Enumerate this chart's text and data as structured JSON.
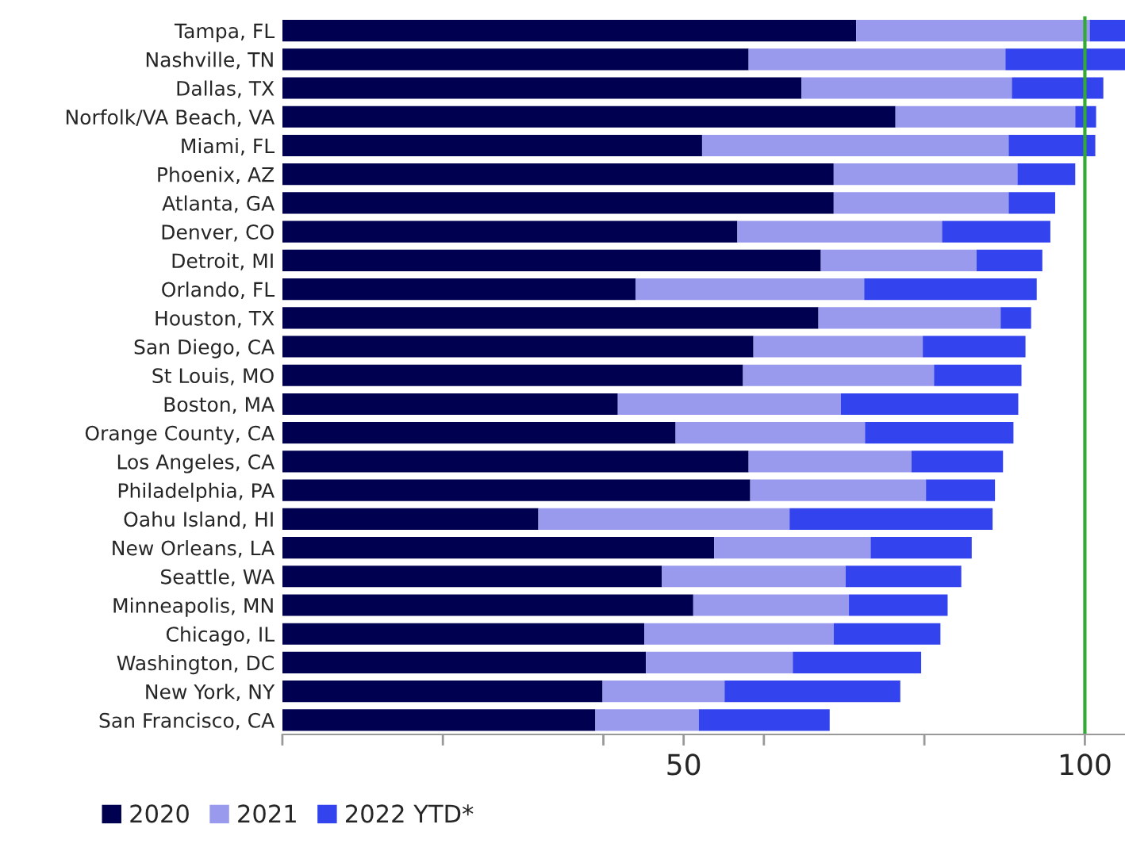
{
  "chart_data": {
    "type": "bar",
    "orientation": "horizontal",
    "stacked": true,
    "categories": [
      "Tampa, FL",
      "Nashville, TN",
      "Dallas, TX",
      "Norfolk/VA Beach, VA",
      "Miami, FL",
      "Phoenix, AZ",
      "Atlanta, GA",
      "Denver, CO",
      "Detroit, MI",
      "Orlando, FL",
      "Houston, TX",
      "San Diego, CA",
      "St Louis, MO",
      "Boston, MA",
      "Orange County, CA",
      "Los Angeles, CA",
      "Philadelphia, PA",
      "Oahu Island, HI",
      "New Orleans, LA",
      "Seattle, WA",
      "Minneapolis, MN",
      "Chicago, IL",
      "Washington, DC",
      "New York, NY",
      "San Francisco, CA"
    ],
    "series": [
      {
        "name": "2020",
        "color": "#000050",
        "values": [
          71.5,
          58.1,
          64.7,
          76.4,
          52.3,
          68.7,
          68.7,
          56.7,
          67.1,
          44.0,
          66.8,
          58.7,
          57.4,
          41.8,
          49.0,
          58.1,
          58.3,
          31.9,
          53.8,
          47.3,
          51.2,
          45.1,
          45.3,
          39.9,
          39.0
        ]
      },
      {
        "name": "2021",
        "color": "#9999ee",
        "values": [
          29.1,
          32.0,
          26.2,
          22.4,
          38.2,
          22.9,
          21.8,
          25.5,
          19.4,
          28.5,
          22.7,
          21.1,
          23.8,
          27.8,
          23.6,
          20.3,
          21.9,
          31.3,
          19.5,
          22.9,
          19.4,
          23.6,
          18.3,
          15.2,
          12.9
        ]
      },
      {
        "name": "2022 YTD*",
        "color": "#3344ee",
        "values": [
          4.4,
          14.9,
          11.4,
          2.6,
          10.8,
          7.2,
          5.8,
          13.5,
          8.2,
          21.5,
          3.8,
          12.8,
          10.9,
          22.1,
          18.5,
          11.4,
          8.6,
          25.3,
          12.6,
          14.4,
          12.3,
          13.3,
          16.0,
          21.9,
          16.3
        ]
      }
    ],
    "xlim": [
      0,
      105
    ],
    "xticks": [
      {
        "value": 0,
        "label": null
      },
      {
        "value": 20,
        "label": null
      },
      {
        "value": 40,
        "label": null
      },
      50,
      {
        "value": 60,
        "label": null
      },
      {
        "value": 80,
        "label": null
      },
      100
    ],
    "ref_lines": [
      {
        "axis": "x",
        "value": 100,
        "color": "#33aa33"
      }
    ],
    "legend": "bottom left",
    "grid": false
  }
}
